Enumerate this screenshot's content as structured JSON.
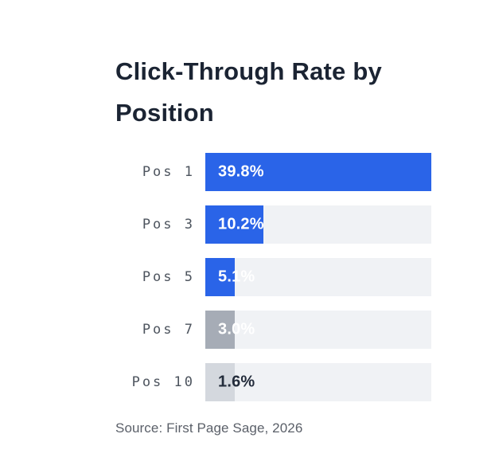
{
  "title": "Click-Through Rate by Position",
  "source_note": "Source: First Page Sage, 2026",
  "chart_data": {
    "type": "bar",
    "orientation": "horizontal",
    "title": "Click-Through Rate by Position",
    "categories": [
      "Pos 1",
      "Pos 3",
      "Pos 5",
      "Pos 7",
      "Pos 10"
    ],
    "values": [
      39.8,
      10.2,
      5.1,
      3.0,
      1.6
    ],
    "value_labels": [
      "39.8%",
      "10.2%",
      "5.1%",
      "3.0%",
      "1.6%"
    ],
    "xlabel": "",
    "ylabel": "",
    "x_max_scale": 39.8,
    "grid": false,
    "legend": false,
    "colors": {
      "bar_fills": [
        "#2a64e8",
        "#2a64e8",
        "#2a64e8",
        "#a6acb6",
        "#d4d8de"
      ],
      "value_label_colors": [
        "#ffffff",
        "#ffffff",
        "#ffffff",
        "#ffffff",
        "#232c3b"
      ],
      "track": "#f0f2f5",
      "title_text": "#1b2433",
      "category_label_text": "#4d545e",
      "source_text": "#5b6069"
    }
  }
}
